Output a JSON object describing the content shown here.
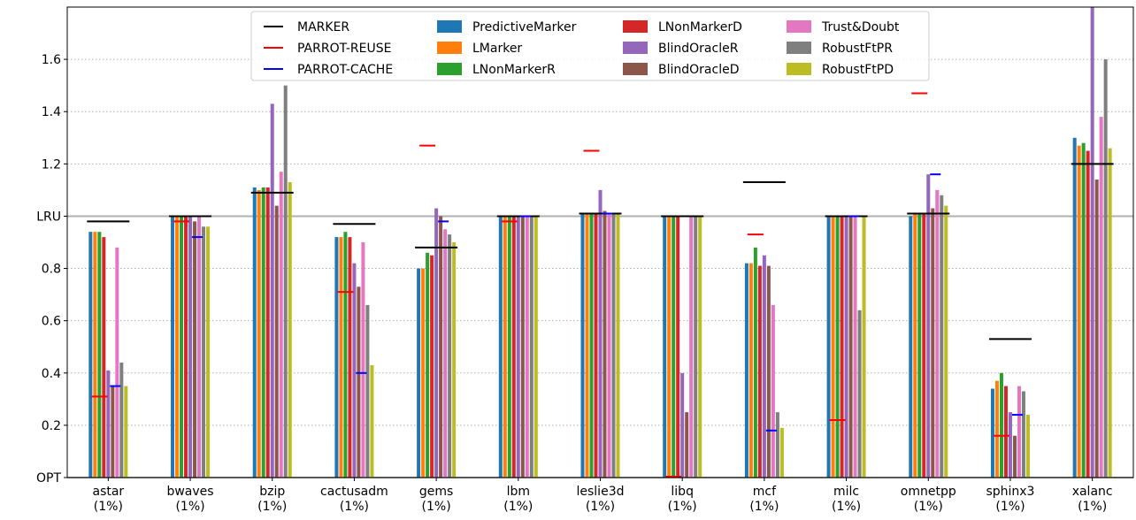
{
  "chart_data": {
    "type": "bar",
    "title": "",
    "xlabel": "",
    "ylabel": "",
    "ylim": [
      0.0,
      1.8
    ],
    "y_ticks": [
      {
        "value": 0.0,
        "label": "OPT"
      },
      {
        "value": 0.2,
        "label": "0.2"
      },
      {
        "value": 0.4,
        "label": "0.4"
      },
      {
        "value": 0.6,
        "label": "0.6"
      },
      {
        "value": 0.8,
        "label": "0.8"
      },
      {
        "value": 1.0,
        "label": "LRU"
      },
      {
        "value": 1.2,
        "label": "1.2"
      },
      {
        "value": 1.4,
        "label": "1.4"
      },
      {
        "value": 1.6,
        "label": "1.6"
      }
    ],
    "grid": "horizontal dotted",
    "reference_lines": [
      {
        "value": 0.0,
        "color": "#b0b0b0"
      },
      {
        "value": 1.0,
        "color": "#b0b0b0"
      }
    ],
    "legend_position": "top-center",
    "categories": [
      "astar",
      "bwaves",
      "bzip",
      "cactusadm",
      "gems",
      "lbm",
      "leslie3d",
      "libq",
      "mcf",
      "milc",
      "omnetpp",
      "sphinx3",
      "xalanc"
    ],
    "category_sublabel": "(1%)",
    "series": [
      {
        "name": "PredictiveMarker",
        "color": "#1f77b4",
        "values": [
          0.94,
          1.0,
          1.11,
          0.92,
          0.8,
          1.0,
          1.01,
          1.0,
          0.82,
          1.0,
          1.0,
          0.34,
          1.3
        ]
      },
      {
        "name": "LMarker",
        "color": "#ff7f0e",
        "values": [
          0.94,
          1.0,
          1.1,
          0.92,
          0.8,
          1.0,
          1.01,
          1.0,
          0.82,
          1.0,
          1.01,
          0.37,
          1.27
        ]
      },
      {
        "name": "LNonMarkerR",
        "color": "#2ca02c",
        "values": [
          0.94,
          1.0,
          1.11,
          0.94,
          0.86,
          1.0,
          1.01,
          1.0,
          0.88,
          1.0,
          1.01,
          0.4,
          1.28
        ]
      },
      {
        "name": "LNonMarkerD",
        "color": "#d62728",
        "values": [
          0.92,
          1.0,
          1.11,
          0.92,
          0.85,
          1.0,
          1.01,
          1.0,
          0.81,
          1.0,
          1.01,
          0.35,
          1.25
        ]
      },
      {
        "name": "BlindOracleR",
        "color": "#9467bd",
        "values": [
          0.41,
          1.0,
          1.43,
          0.82,
          1.03,
          1.0,
          1.1,
          0.4,
          0.85,
          1.0,
          1.16,
          0.25,
          1.8
        ]
      },
      {
        "name": "BlindOracleD",
        "color": "#8c564b",
        "values": [
          0.35,
          0.98,
          1.04,
          0.73,
          1.0,
          1.0,
          1.02,
          0.25,
          0.81,
          1.0,
          1.03,
          0.16,
          1.14
        ]
      },
      {
        "name": "Trust&Doubt",
        "color": "#e377c2",
        "values": [
          0.88,
          1.0,
          1.17,
          0.9,
          0.95,
          1.0,
          1.01,
          1.0,
          0.66,
          1.0,
          1.1,
          0.35,
          1.38
        ]
      },
      {
        "name": "RobustFtPR",
        "color": "#7f7f7f",
        "values": [
          0.44,
          0.96,
          1.5,
          0.66,
          0.93,
          1.0,
          1.01,
          1.0,
          0.25,
          0.64,
          1.08,
          0.33,
          1.6
        ]
      },
      {
        "name": "RobustFtPD",
        "color": "#bcbd22",
        "values": [
          0.35,
          0.96,
          1.13,
          0.43,
          0.9,
          1.0,
          1.01,
          1.0,
          0.19,
          1.0,
          1.04,
          0.24,
          1.26
        ]
      }
    ],
    "marker_series": [
      {
        "name": "MARKER",
        "color": "#000000",
        "values": [
          0.98,
          1.0,
          1.09,
          0.97,
          0.88,
          1.0,
          1.01,
          1.0,
          1.13,
          1.0,
          1.01,
          0.53,
          1.2
        ]
      },
      {
        "name": "PARROT-REUSE",
        "color": "#ff0000",
        "values": [
          0.31,
          0.98,
          null,
          0.71,
          1.27,
          0.98,
          1.25,
          0.0,
          0.93,
          0.22,
          1.47,
          0.16,
          null
        ]
      },
      {
        "name": "PARROT-CACHE",
        "color": "#0000ff",
        "values": [
          0.35,
          0.92,
          null,
          0.4,
          0.98,
          1.0,
          1.01,
          null,
          0.18,
          1.0,
          1.16,
          0.24,
          null
        ]
      }
    ],
    "legend_columns": [
      [
        "MARKER",
        "PARROT-REUSE",
        "PARROT-CACHE"
      ],
      [
        "PredictiveMarker",
        "LMarker",
        "LNonMarkerR"
      ],
      [
        "LNonMarkerD",
        "BlindOracleR",
        "BlindOracleD"
      ],
      [
        "Trust&Doubt",
        "RobustFtPR",
        "RobustFtPD"
      ]
    ]
  }
}
